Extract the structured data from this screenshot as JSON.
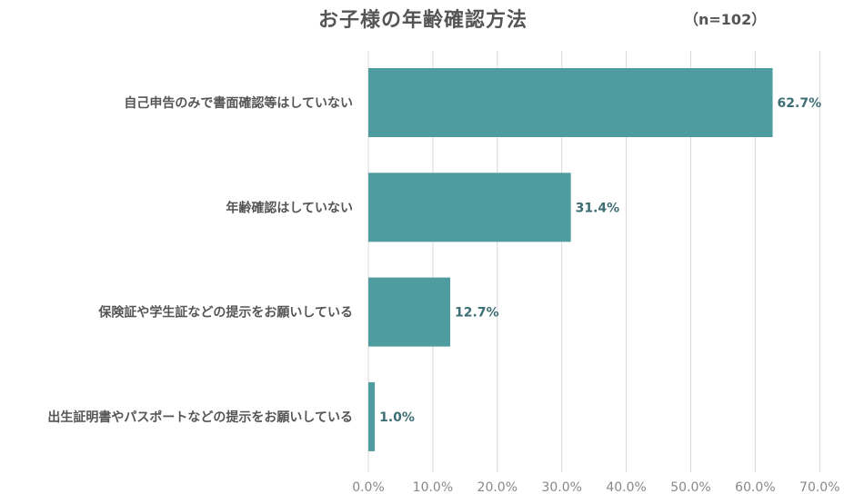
{
  "chart_data": {
    "type": "bar",
    "orientation": "horizontal",
    "title": "お子様の年齢確認方法",
    "note": "（n=102）",
    "categories": [
      "自己申告のみで書面確認等はしていない",
      "年齢確認はしていない",
      "保険証や学生証などの提示をお願いしている",
      "出生証明書やパスポートなどの提示をお願いしている"
    ],
    "values": [
      62.7,
      31.4,
      12.7,
      1.0
    ],
    "data_labels": [
      "62.7%",
      "31.4%",
      "12.7%",
      "1.0%"
    ],
    "xlim": [
      0,
      70
    ],
    "x_ticks": [
      "0.0%",
      "10.0%",
      "20.0%",
      "30.0%",
      "40.0%",
      "50.0%",
      "60.0%",
      "70.0%"
    ],
    "grid": true,
    "legend": "none",
    "colors": {
      "bar": "#4e9c9f",
      "data_label": "#3d6e73",
      "category_label": "#555555",
      "tick_label": "#888888",
      "grid": "#d9d9d9"
    }
  }
}
